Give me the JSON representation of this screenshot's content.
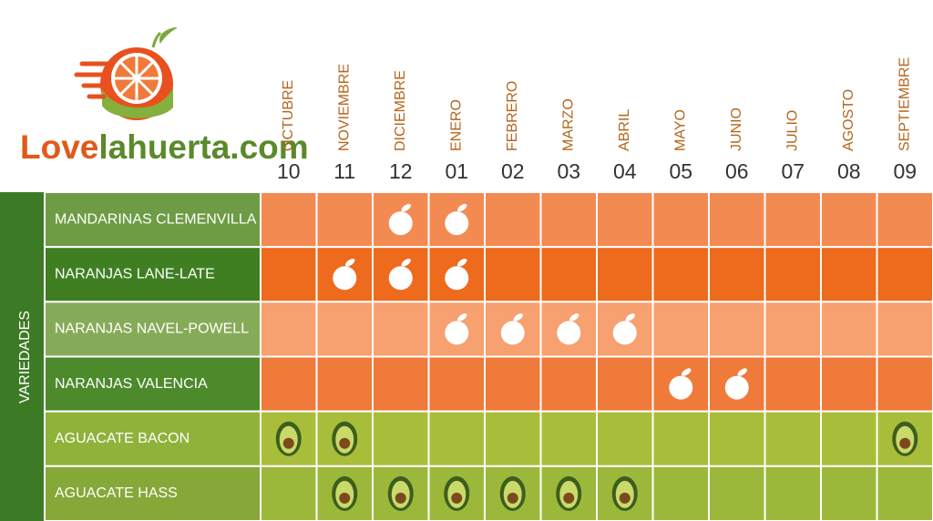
{
  "logo": {
    "love": "Love",
    "domain": "lahuerta.com"
  },
  "side_label": "VARIEDADES",
  "months": [
    {
      "name": "OCTUBRE",
      "number": "10"
    },
    {
      "name": "NOVIEMBRE",
      "number": "11"
    },
    {
      "name": "DICIEMBRE",
      "number": "12"
    },
    {
      "name": "ENERO",
      "number": "01"
    },
    {
      "name": "FEBRERO",
      "number": "02"
    },
    {
      "name": "MARZO",
      "number": "03"
    },
    {
      "name": "ABRIL",
      "number": "04"
    },
    {
      "name": "MAYO",
      "number": "05"
    },
    {
      "name": "JUNIO",
      "number": "06"
    },
    {
      "name": "JULIO",
      "number": "07"
    },
    {
      "name": "AGOSTO",
      "number": "08"
    },
    {
      "name": "SEPTIEMBRE",
      "number": "09"
    }
  ],
  "rows": [
    {
      "name": "MANDARINAS CLEMENVILLA",
      "icon": "orange",
      "color": "#f38a52",
      "label_color": "#6e9c45",
      "available": [
        false,
        false,
        true,
        true,
        false,
        false,
        false,
        false,
        false,
        false,
        false,
        false
      ]
    },
    {
      "name": "NARANJAS LANE-LATE",
      "icon": "orange",
      "color": "#ee6a1c",
      "label_color": "#3f7f22",
      "available": [
        false,
        true,
        true,
        true,
        false,
        false,
        false,
        false,
        false,
        false,
        false,
        false
      ]
    },
    {
      "name": "NARANJAS NAVEL-POWELL",
      "icon": "orange",
      "color": "#f7a070",
      "label_color": "#86ab58",
      "available": [
        false,
        false,
        false,
        true,
        true,
        true,
        true,
        false,
        false,
        false,
        false,
        false
      ]
    },
    {
      "name": "NARANJAS VALENCIA",
      "icon": "orange",
      "color": "#f07a3a",
      "label_color": "#4c8a2c",
      "available": [
        false,
        false,
        false,
        false,
        false,
        false,
        false,
        true,
        true,
        false,
        false,
        false
      ]
    },
    {
      "name": "AGUACATE BACON",
      "icon": "avocado",
      "color": "#a8be3a",
      "label_color": "#8fb23a",
      "available": [
        true,
        true,
        false,
        false,
        false,
        false,
        false,
        false,
        false,
        false,
        false,
        true
      ]
    },
    {
      "name": "AGUACATE HASS",
      "icon": "avocado",
      "color": "#9cb83a",
      "label_color": "#86a838",
      "available": [
        false,
        true,
        true,
        true,
        true,
        true,
        true,
        false,
        false,
        false,
        false,
        false
      ]
    }
  ]
}
